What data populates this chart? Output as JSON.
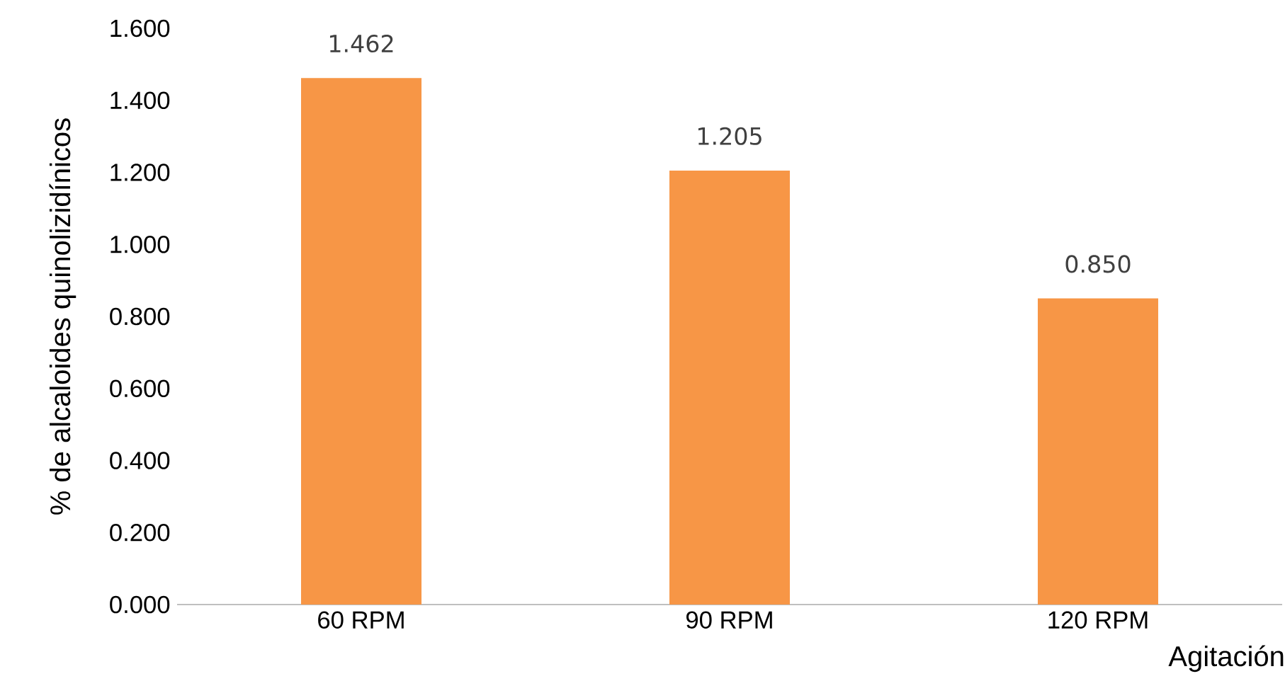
{
  "chart_data": {
    "type": "bar",
    "xlabel": "Agitación",
    "ylabel": "% de alcaloides quinolizidínicos",
    "categories": [
      "60 RPM",
      "90 RPM",
      "120 RPM"
    ],
    "values": [
      1.462,
      1.205,
      0.85
    ],
    "value_labels": [
      "1.462",
      "1.205",
      "0.850"
    ],
    "color": "#f79646",
    "ylim": [
      0,
      1.6
    ],
    "yticks": [
      {
        "value": 0,
        "label": "0.000"
      },
      {
        "value": 0.2,
        "label": "0.200"
      },
      {
        "value": 0.4,
        "label": "0.400"
      },
      {
        "value": 0.6,
        "label": "0.600"
      },
      {
        "value": 0.8,
        "label": "0.800"
      },
      {
        "value": 1.0,
        "label": "1.000"
      },
      {
        "value": 1.2,
        "label": "1.200"
      },
      {
        "value": 1.4,
        "label": "1.400"
      },
      {
        "value": 1.6,
        "label": "1.600"
      }
    ],
    "grid": false
  }
}
